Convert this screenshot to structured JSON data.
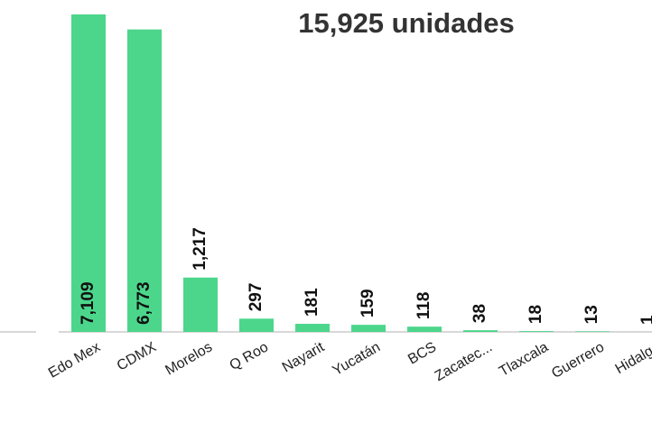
{
  "chart_data": {
    "type": "bar",
    "title": "15,925 unidades",
    "categories": [
      "Edo Mex",
      "CDMX",
      "Morelos",
      "Q Roo",
      "Nayarit",
      "Yucatán",
      "BCS",
      "Zacatec...",
      "Tlaxcala",
      "Guerrero",
      "Hidalgo"
    ],
    "values": [
      7109,
      6773,
      1217,
      297,
      181,
      159,
      118,
      38,
      18,
      13,
      1
    ],
    "value_labels": [
      "7,109",
      "6,773",
      "1,217",
      "297",
      "181",
      "159",
      "118",
      "38",
      "18",
      "13",
      "1"
    ],
    "color": "#4cd68b",
    "ylim": [
      0,
      7200
    ]
  }
}
